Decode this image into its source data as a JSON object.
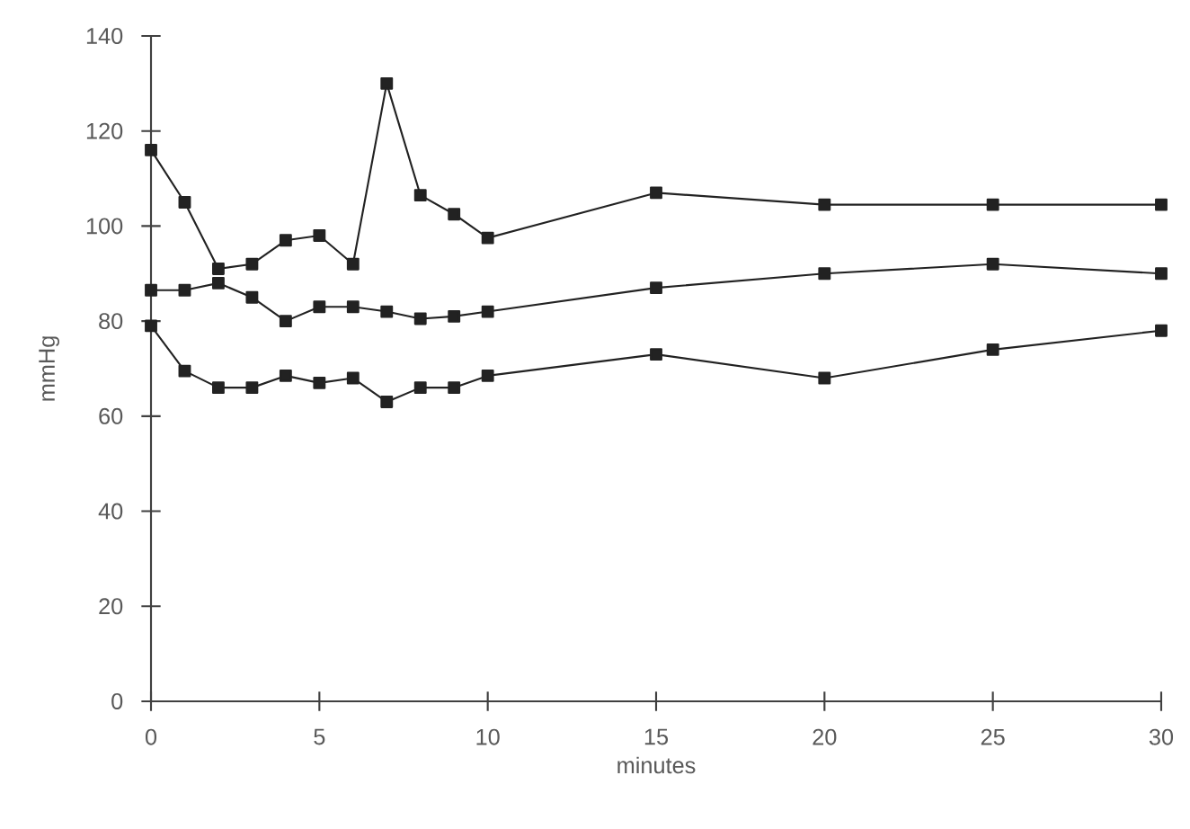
{
  "chart_data": {
    "type": "line",
    "xlabel": "minutes",
    "ylabel": "mmHg",
    "x": [
      0,
      1,
      2,
      3,
      4,
      5,
      6,
      7,
      8,
      9,
      10,
      15,
      20,
      25,
      30
    ],
    "series": [
      {
        "color": "#222222",
        "values": [
          116,
          105,
          91,
          92,
          97,
          98,
          92,
          130,
          106.5,
          102.5,
          97.5,
          107,
          104.5,
          104.5,
          104.5
        ]
      },
      {
        "color": "#222222",
        "values": [
          86.5,
          86.5,
          88,
          85,
          80,
          83,
          83,
          82,
          80.5,
          81,
          82,
          87,
          90,
          92,
          90
        ]
      },
      {
        "color": "#222222",
        "values": [
          79,
          69.5,
          66,
          66,
          68.5,
          67,
          68,
          63,
          66,
          66,
          68.5,
          73,
          68,
          74,
          78
        ]
      }
    ],
    "xlim": [
      0,
      30
    ],
    "xticks": [
      0,
      5,
      10,
      15,
      20,
      25,
      30
    ],
    "ylim": [
      0,
      140
    ],
    "yticks": [
      0,
      20,
      40,
      60,
      80,
      100,
      120,
      140
    ],
    "grid": false,
    "marker": "square",
    "line_style": "solid"
  }
}
